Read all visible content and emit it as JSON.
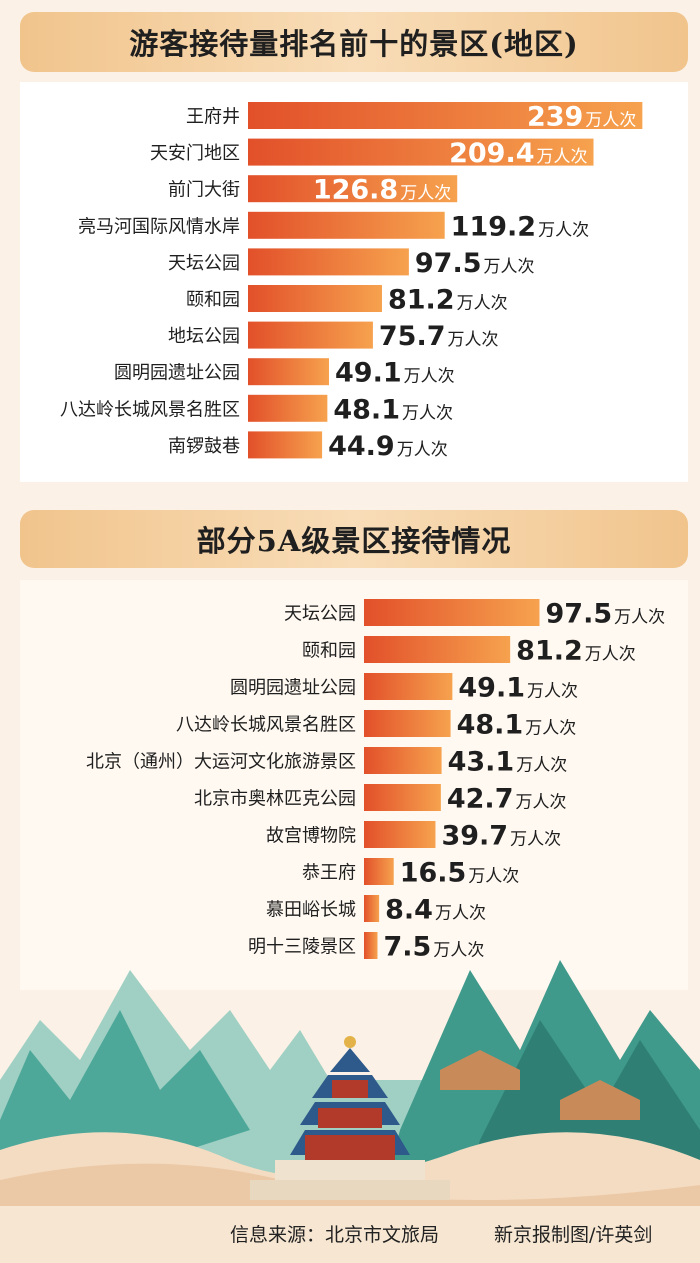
{
  "chart_data": [
    {
      "type": "bar",
      "orientation": "horizontal",
      "title": "游客接待量排名前十的景区(地区)",
      "categories": [
        "王府井",
        "天安门地区",
        "前门大街",
        "亮马河国际风情水岸",
        "天坛公园",
        "颐和园",
        "地坛公园",
        "圆明园遗址公园",
        "八达岭长城风景名胜区",
        "南锣鼓巷"
      ],
      "values": [
        239,
        209.4,
        126.8,
        119.2,
        97.5,
        81.2,
        75.7,
        49.1,
        48.1,
        44.9
      ],
      "unit": "万人次",
      "labels": [
        "239",
        "209.4",
        "126.8",
        "119.2",
        "97.5",
        "81.2",
        "75.7",
        "49.1",
        "48.1",
        "44.9"
      ],
      "label_inside": [
        true,
        true,
        true,
        false,
        false,
        false,
        false,
        false,
        false,
        false
      ]
    },
    {
      "type": "bar",
      "orientation": "horizontal",
      "title": "部分5A级景区接待情况",
      "categories": [
        "天坛公园",
        "颐和园",
        "圆明园遗址公园",
        "八达岭长城风景名胜区",
        "北京（通州）大运河文化旅游景区",
        "北京市奥林匹克公园",
        "故宫博物院",
        "恭王府",
        "慕田峪长城",
        "明十三陵景区"
      ],
      "values": [
        97.5,
        81.2,
        49.1,
        48.1,
        43.1,
        42.7,
        39.7,
        16.5,
        8.4,
        7.5
      ],
      "unit": "万人次",
      "labels": [
        "97.5",
        "81.2",
        "49.1",
        "48.1",
        "43.1",
        "42.7",
        "39.7",
        "16.5",
        "8.4",
        "7.5"
      ],
      "label_inside": [
        false,
        false,
        false,
        false,
        false,
        false,
        false,
        false,
        false,
        false
      ]
    }
  ],
  "colors": {
    "bar_start": "#e2502a",
    "bar_end": "#f6a24e",
    "inside_label": "#ffffff",
    "outside_label": "#1f1f1f"
  },
  "footer": {
    "source": "信息来源：北京市文旅局",
    "credit": "新京报制图/许英剑"
  }
}
